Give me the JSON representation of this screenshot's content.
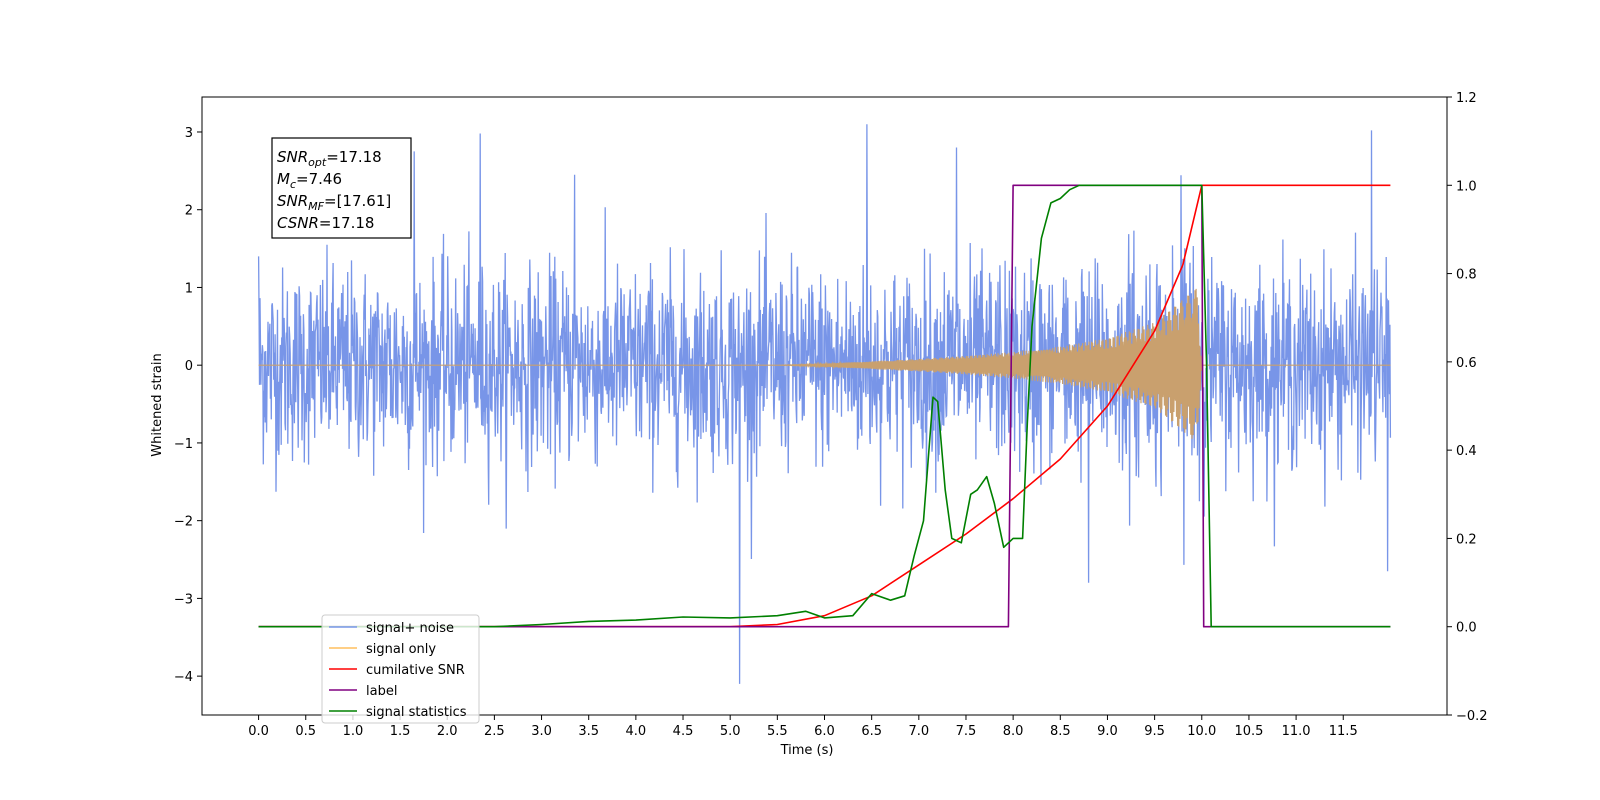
{
  "chart_data": {
    "type": "line",
    "title": "",
    "xlabel": "Time (s)",
    "ylabel": "Whitened strain",
    "y2label": "",
    "xlim": [
      -0.6,
      12.6
    ],
    "ylim": [
      -4.5,
      3.45
    ],
    "y2lim": [
      -0.2,
      1.2
    ],
    "x_ticks": [
      0.0,
      0.5,
      1.0,
      1.5,
      2.0,
      2.5,
      3.0,
      3.5,
      4.0,
      4.5,
      5.0,
      5.5,
      6.0,
      6.5,
      7.0,
      7.5,
      8.0,
      8.5,
      9.0,
      9.5,
      10.0,
      10.5,
      11.0,
      11.5
    ],
    "x_tick_labels": [
      "0.0",
      "0.5",
      "1.0",
      "1.5",
      "2.0",
      "2.5",
      "3.0",
      "3.5",
      "4.0",
      "4.5",
      "5.0",
      "5.5",
      "6.0",
      "6.5",
      "7.0",
      "7.5",
      "8.0",
      "8.5",
      "9.0",
      "9.5",
      "10.0",
      "10.5",
      "11.0",
      "11.5"
    ],
    "y_ticks": [
      -4,
      -3,
      -2,
      -1,
      0,
      1,
      2,
      3
    ],
    "y_tick_labels": [
      "−4",
      "−3",
      "−2",
      "−1",
      "0",
      "1",
      "2",
      "3"
    ],
    "y2_ticks": [
      -0.2,
      0.0,
      0.2,
      0.4,
      0.6,
      0.8,
      1.0,
      1.2
    ],
    "y2_tick_labels": [
      "−0.2",
      "0.0",
      "0.2",
      "0.4",
      "0.6",
      "0.8",
      "1.0",
      "1.2"
    ],
    "grid": false,
    "legend_position": "bottom-left",
    "annotation": {
      "lines": [
        {
          "sym": "SNR",
          "sub": "opt",
          "val": "=17.18"
        },
        {
          "sym": "M",
          "sub": "c",
          "val": "=7.46"
        },
        {
          "sym": "SNR",
          "sub": "MF",
          "val": "=[17.61]"
        },
        {
          "sym": "CSNR",
          "sub": "",
          "val": "=17.18"
        }
      ]
    },
    "series": [
      {
        "name": "signal+ noise",
        "axis": "left",
        "color": "#7895e8",
        "kind": "noise",
        "x_range": [
          0.0,
          12.0
        ],
        "noise_band": [
          -1.6,
          1.6
        ],
        "notable_points": [
          [
            0.0,
            1.4
          ],
          [
            1.65,
            2.75
          ],
          [
            2.35,
            2.98
          ],
          [
            3.35,
            2.45
          ],
          [
            5.1,
            -4.1
          ],
          [
            6.45,
            3.1
          ],
          [
            11.8,
            3.02
          ],
          [
            11.97,
            -2.65
          ],
          [
            7.4,
            2.8
          ],
          [
            8.8,
            -2.8
          ]
        ]
      },
      {
        "name": "signal only",
        "axis": "left",
        "color": "#c9a06e",
        "kind": "chirp",
        "x_range": [
          0.0,
          12.0
        ],
        "envelope": [
          [
            0.0,
            0.0
          ],
          [
            5.5,
            0.0
          ],
          [
            6.0,
            0.02
          ],
          [
            6.5,
            0.05
          ],
          [
            7.0,
            0.08
          ],
          [
            7.5,
            0.12
          ],
          [
            8.0,
            0.17
          ],
          [
            8.5,
            0.24
          ],
          [
            9.0,
            0.35
          ],
          [
            9.5,
            0.55
          ],
          [
            9.8,
            0.85
          ],
          [
            9.95,
            1.0
          ],
          [
            10.0,
            0.0
          ],
          [
            12.0,
            0.0
          ]
        ]
      },
      {
        "name": "cumilative SNR",
        "axis": "right",
        "color": "#ff0000",
        "x": [
          0.0,
          5.0,
          5.5,
          6.0,
          6.5,
          7.0,
          7.5,
          8.0,
          8.5,
          9.0,
          9.5,
          9.8,
          10.0,
          12.0
        ],
        "y": [
          0.0,
          0.0,
          0.005,
          0.025,
          0.07,
          0.14,
          0.21,
          0.29,
          0.38,
          0.5,
          0.67,
          0.82,
          1.0,
          1.0
        ]
      },
      {
        "name": "label",
        "axis": "right",
        "color": "#800080",
        "x": [
          0.0,
          7.95,
          8.0,
          10.0,
          10.02,
          12.0
        ],
        "y": [
          0.0,
          0.0,
          1.0,
          1.0,
          0.0,
          0.0
        ]
      },
      {
        "name": "signal statistics",
        "axis": "right",
        "color": "#008000",
        "x": [
          0.0,
          2.5,
          3.0,
          3.5,
          4.0,
          4.5,
          5.0,
          5.5,
          5.8,
          6.0,
          6.3,
          6.5,
          6.7,
          6.85,
          6.95,
          7.05,
          7.15,
          7.2,
          7.28,
          7.35,
          7.45,
          7.55,
          7.62,
          7.72,
          7.8,
          7.9,
          8.0,
          8.1,
          8.15,
          8.2,
          8.3,
          8.4,
          8.5,
          8.6,
          8.7,
          9.0,
          9.5,
          10.0,
          10.05,
          10.1,
          12.0
        ],
        "y": [
          0.0,
          0.0,
          0.005,
          0.012,
          0.015,
          0.022,
          0.02,
          0.025,
          0.035,
          0.02,
          0.025,
          0.075,
          0.06,
          0.07,
          0.16,
          0.24,
          0.52,
          0.51,
          0.31,
          0.2,
          0.19,
          0.3,
          0.31,
          0.34,
          0.28,
          0.18,
          0.2,
          0.2,
          0.46,
          0.68,
          0.88,
          0.96,
          0.97,
          0.99,
          1.0,
          1.0,
          1.0,
          1.0,
          0.6,
          0.0,
          0.0
        ]
      }
    ],
    "legend_entries": [
      {
        "label": "signal+ noise",
        "color": "#7895e8"
      },
      {
        "label": "signal only",
        "color": "#ffbf5f"
      },
      {
        "label": "cumilative SNR",
        "color": "#ff0000"
      },
      {
        "label": "label",
        "color": "#800080"
      },
      {
        "label": "signal statistics",
        "color": "#008000"
      }
    ]
  }
}
